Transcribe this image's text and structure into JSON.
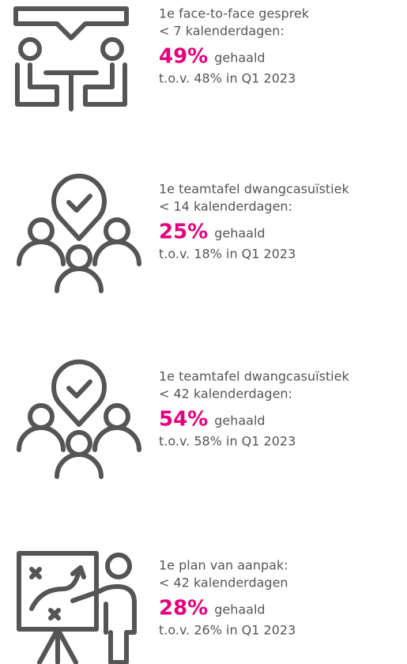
{
  "items": [
    {
      "title": "1e face-to-face gesprek",
      "subtitle": "< 7 kalenderdagen:",
      "value": "49%",
      "suffix": "gehaald",
      "comparison": "t.o.v. 48% in Q1 2023"
    },
    {
      "title": "1e teamtafel dwangcasuïstiek",
      "subtitle": "< 14 kalenderdagen:",
      "value": "25%",
      "suffix": "gehaald",
      "comparison": "t.o.v. 18% in Q1 2023"
    },
    {
      "title": "1e teamtafel dwangcasuïstiek",
      "subtitle": "< 42 kalenderdagen:",
      "value": "54%",
      "suffix": "gehaald",
      "comparison": "t.o.v. 58% in Q1 2023"
    },
    {
      "title": "1e plan van aanpak:",
      "subtitle": "< 42 kalenderdagen",
      "value": "28%",
      "suffix": "gehaald",
      "comparison": "t.o.v. 26% in Q1 2023"
    }
  ]
}
